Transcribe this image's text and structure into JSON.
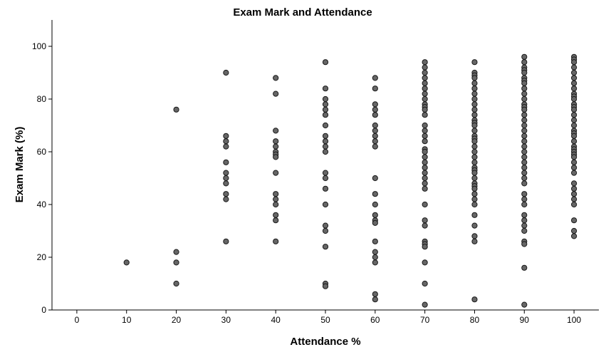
{
  "chart_data": {
    "type": "scatter",
    "title": "Exam Mark and Attendance",
    "xlabel": "Attendance %",
    "ylabel": "Exam Mark (%)",
    "xlim": [
      -5,
      105
    ],
    "ylim": [
      0,
      110
    ],
    "xticks": [
      0,
      10,
      20,
      30,
      40,
      50,
      60,
      70,
      80,
      90,
      100
    ],
    "yticks": [
      0,
      20,
      40,
      60,
      80,
      100
    ],
    "grid": false,
    "point_color": "#666666",
    "point_edge_color": "#1a1a1a",
    "points": [
      {
        "x": 10,
        "ys": [
          18
        ]
      },
      {
        "x": 20,
        "ys": [
          76,
          22,
          18,
          10
        ]
      },
      {
        "x": 30,
        "ys": [
          90,
          66,
          64,
          62,
          56,
          52,
          50,
          48,
          44,
          42,
          26
        ]
      },
      {
        "x": 40,
        "ys": [
          88,
          82,
          68,
          64,
          62,
          60,
          59,
          58,
          52,
          44,
          42,
          40,
          36,
          34,
          26
        ]
      },
      {
        "x": 50,
        "ys": [
          94,
          84,
          80,
          78,
          76,
          74,
          70,
          66,
          64,
          62,
          60,
          52,
          50,
          46,
          40,
          32,
          30,
          24,
          10,
          9
        ]
      },
      {
        "x": 60,
        "ys": [
          88,
          84,
          78,
          76,
          74,
          70,
          68,
          66,
          64,
          62,
          50,
          44,
          40,
          36,
          34,
          33,
          26,
          22,
          20,
          18,
          6,
          4
        ]
      },
      {
        "x": 70,
        "ys": [
          94,
          92,
          90,
          88,
          86,
          84,
          82,
          80,
          78,
          77,
          76,
          74,
          70,
          68,
          66,
          64,
          61,
          60,
          58,
          56,
          54,
          52,
          50,
          48,
          46,
          40,
          34,
          32,
          26,
          25,
          24,
          18,
          10,
          2
        ]
      },
      {
        "x": 80,
        "ys": [
          94,
          90,
          89,
          88,
          86,
          84,
          82,
          80,
          78,
          76,
          74,
          72,
          71,
          70,
          68,
          66,
          65,
          64,
          62,
          60,
          58,
          56,
          54,
          53,
          52,
          50,
          48,
          47,
          46,
          44,
          42,
          40,
          36,
          32,
          28,
          26,
          4
        ]
      },
      {
        "x": 90,
        "ys": [
          96,
          94,
          92,
          91,
          90,
          88,
          87,
          86,
          84,
          82,
          80,
          78,
          77,
          76,
          74,
          72,
          70,
          68,
          66,
          64,
          62,
          60,
          58,
          56,
          54,
          52,
          50,
          48,
          44,
          42,
          40,
          36,
          34,
          32,
          30,
          26,
          25,
          16,
          2
        ]
      },
      {
        "x": 100,
        "ys": [
          96,
          95,
          94,
          92,
          90,
          88,
          86,
          84,
          82,
          81,
          80,
          78,
          77,
          76,
          74,
          72,
          70,
          68,
          67,
          66,
          64,
          62,
          61,
          60,
          59,
          58,
          56,
          54,
          52,
          48,
          46,
          44,
          42,
          40,
          34,
          30,
          28
        ]
      }
    ]
  }
}
